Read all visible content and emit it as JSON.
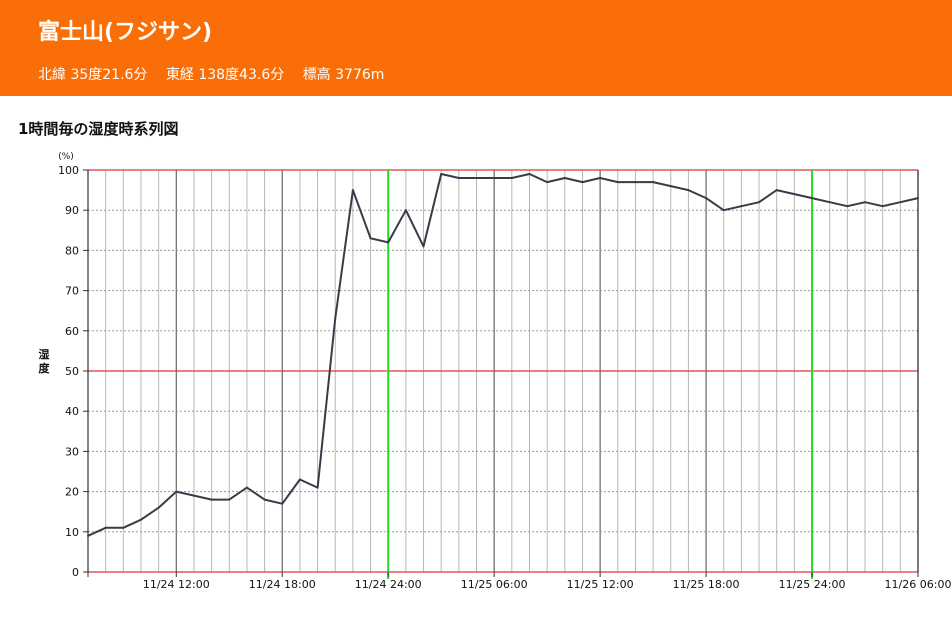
{
  "header": {
    "station_name": "富士山(フジサン)",
    "latitude": "北緯 35度21.6分",
    "longitude": "東経 138度43.6分",
    "elevation": "標高 3776m",
    "bg_color": "#f96e07"
  },
  "section_title": "1時間毎の湿度時系列図",
  "chart_data": {
    "type": "line",
    "title": "1時間毎の湿度時系列図",
    "ylabel": "湿度",
    "yunit": "(%)",
    "xlabel": "",
    "ylim": [
      0,
      100
    ],
    "yticks": [
      0,
      10,
      20,
      30,
      40,
      50,
      60,
      70,
      80,
      90,
      100
    ],
    "xlim": [
      "2024-11-24 07:00",
      "2024-11-26 06:00"
    ],
    "x_tick_labels": [
      "11/24 12:00",
      "11/24 18:00",
      "11/24 24:00",
      "11/25 06:00",
      "11/25 12:00",
      "11/25 18:00",
      "11/25 24:00",
      "11/26 06:00"
    ],
    "grid": true,
    "line_color": "#3a3a48",
    "red_line_color": "#e13232",
    "green_line_color": "#22dd22",
    "series": [
      {
        "name": "",
        "x": [
          "11/24 07:00",
          "11/24 08:00",
          "11/24 09:00",
          "11/24 10:00",
          "11/24 11:00",
          "11/24 12:00",
          "11/24 13:00",
          "11/24 14:00",
          "11/24 15:00",
          "11/24 16:00",
          "11/24 17:00",
          "11/24 18:00",
          "11/24 19:00",
          "11/24 20:00",
          "11/24 21:00",
          "11/24 22:00",
          "11/24 23:00",
          "11/24 24:00",
          "11/25 01:00",
          "11/25 02:00",
          "11/25 03:00",
          "11/25 04:00",
          "11/25 05:00",
          "11/25 06:00",
          "11/25 07:00",
          "11/25 08:00",
          "11/25 09:00",
          "11/25 10:00",
          "11/25 11:00",
          "11/25 12:00",
          "11/25 13:00",
          "11/25 14:00",
          "11/25 15:00",
          "11/25 16:00",
          "11/25 17:00",
          "11/25 18:00",
          "11/25 19:00",
          "11/25 20:00",
          "11/25 21:00",
          "11/25 22:00",
          "11/25 23:00",
          "11/25 24:00",
          "11/26 01:00",
          "11/26 02:00",
          "11/26 03:00",
          "11/26 04:00",
          "11/26 05:00",
          "11/26 06:00"
        ],
        "values": [
          9,
          11,
          11,
          13,
          16,
          20,
          19,
          18,
          18,
          21,
          18,
          17,
          23,
          21,
          63,
          95,
          83,
          82,
          90,
          81,
          99,
          98,
          98,
          98,
          98,
          99,
          97,
          98,
          97,
          98,
          97,
          97,
          97,
          96,
          95,
          93,
          90,
          91,
          92,
          95,
          94,
          93,
          92,
          91,
          92,
          91,
          92,
          93
        ]
      }
    ]
  }
}
